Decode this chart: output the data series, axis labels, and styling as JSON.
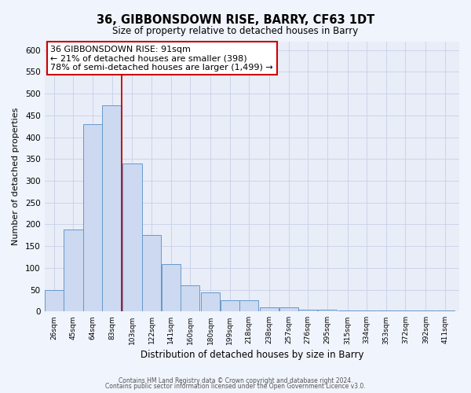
{
  "title": "36, GIBBONSDOWN RISE, BARRY, CF63 1DT",
  "subtitle": "Size of property relative to detached houses in Barry",
  "xlabel": "Distribution of detached houses by size in Barry",
  "ylabel": "Number of detached properties",
  "bar_heights": [
    50,
    188,
    430,
    473,
    340,
    175,
    108,
    60,
    43,
    25,
    25,
    10,
    10,
    5,
    5,
    3,
    3,
    3,
    3,
    3,
    3
  ],
  "bar_centers": [
    26,
    45,
    64,
    83,
    103,
    122,
    141,
    160,
    180,
    199,
    218,
    238,
    257,
    276,
    295,
    315,
    334,
    353,
    372,
    392,
    411
  ],
  "bar_face_color": "#ccd9f0",
  "bar_edge_color": "#6699cc",
  "vline_x": 92.5,
  "vline_color": "#cc0000",
  "annotation_text": "36 GIBBONSDOWN RISE: 91sqm\n← 21% of detached houses are smaller (398)\n78% of semi-detached houses are larger (1,499) →",
  "annotation_box_color": "#ffffff",
  "annotation_box_edge": "#cc0000",
  "xlim": [
    16.5,
    425
  ],
  "ylim": [
    0,
    620
  ],
  "yticks": [
    0,
    50,
    100,
    150,
    200,
    250,
    300,
    350,
    400,
    450,
    500,
    550,
    600
  ],
  "x_tick_labels": [
    "26sqm",
    "45sqm",
    "64sqm",
    "83sqm",
    "103sqm",
    "122sqm",
    "141sqm",
    "160sqm",
    "180sqm",
    "199sqm",
    "218sqm",
    "238sqm",
    "257sqm",
    "276sqm",
    "295sqm",
    "315sqm",
    "334sqm",
    "353sqm",
    "372sqm",
    "392sqm",
    "411sqm"
  ],
  "x_tick_positions": [
    26,
    45,
    64,
    83,
    103,
    122,
    141,
    160,
    180,
    199,
    218,
    238,
    257,
    276,
    295,
    315,
    334,
    353,
    372,
    392,
    411
  ],
  "grid_color": "#c8d0e8",
  "plot_bg_color": "#e8edf8",
  "fig_bg_color": "#f0f4fc",
  "footer_line1": "Contains HM Land Registry data © Crown copyright and database right 2024.",
  "footer_line2": "Contains public sector information licensed under the Open Government Licence v3.0."
}
